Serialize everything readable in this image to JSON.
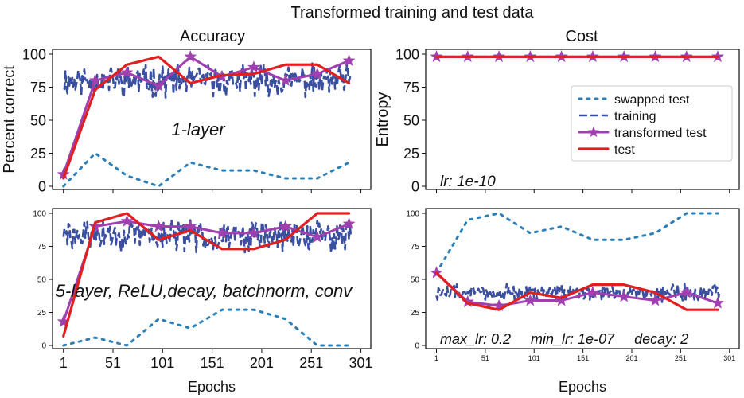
{
  "figure": {
    "title": "Transformed training and test data",
    "col_titles": [
      "Accuracy",
      "Cost"
    ]
  },
  "colors": {
    "swapped_test": "#2a7fb8",
    "training": "#3a4fa0",
    "transformed_test": "#a040b0",
    "test": "#e02020"
  },
  "legend": {
    "placement": "center-right of top-right panel",
    "entries": [
      "swapped test",
      "training",
      "transformed test",
      "test"
    ]
  },
  "chart_data": [
    {
      "id": "top_left",
      "type": "line",
      "title": "Accuracy",
      "ylabel": "Percent correct",
      "xlabel": "",
      "annotation": "1-layer",
      "xlim": [
        -10,
        311
      ],
      "ylim": [
        0,
        100
      ],
      "xticks": [
        1,
        51,
        101,
        151,
        201,
        251,
        301
      ],
      "show_xtick_labels": false,
      "yticks": [
        0,
        25,
        50,
        75,
        100
      ],
      "series": [
        {
          "key": "training",
          "x": [
            1,
            291
          ],
          "mean": 80,
          "amp": 9,
          "seed": 11
        },
        {
          "key": "transformed_test",
          "x": [
            1,
            33,
            65,
            97,
            129,
            161,
            193,
            225,
            257,
            289
          ],
          "y": [
            9,
            80,
            86,
            76,
            98,
            83,
            90,
            80,
            85,
            95
          ]
        },
        {
          "key": "test",
          "x": [
            1,
            33,
            65,
            97,
            129,
            161,
            193,
            225,
            257,
            289
          ],
          "y": [
            6,
            73,
            92,
            98,
            78,
            84,
            85,
            92,
            92,
            78
          ]
        },
        {
          "key": "swapped_test",
          "x": [
            1,
            33,
            65,
            97,
            129,
            161,
            193,
            225,
            257,
            289
          ],
          "y": [
            0,
            25,
            8,
            0,
            18,
            12,
            12,
            6,
            6,
            18
          ]
        }
      ]
    },
    {
      "id": "top_right",
      "type": "line",
      "title": "Cost",
      "ylabel": "Entropy",
      "xlabel": "",
      "annotation": "lr: 1e-10",
      "xlim": [
        -10,
        311
      ],
      "ylim": [
        0,
        100
      ],
      "xticks": [
        1,
        51,
        101,
        151,
        201,
        251,
        301
      ],
      "show_xtick_labels": false,
      "yticks": [
        0,
        25,
        50,
        75,
        100
      ],
      "series": [
        {
          "key": "swapped_test",
          "x": [
            1,
            33,
            65,
            97,
            129,
            161,
            193,
            225,
            257,
            289
          ],
          "y": [
            98,
            98,
            98,
            98,
            98,
            98,
            98,
            98,
            98,
            98
          ]
        },
        {
          "key": "training",
          "x": [
            1,
            291
          ],
          "mean": 98,
          "amp": 0,
          "seed": 3
        },
        {
          "key": "transformed_test",
          "x": [
            1,
            33,
            65,
            97,
            129,
            161,
            193,
            225,
            257,
            289
          ],
          "y": [
            98,
            98,
            98,
            98,
            98,
            98,
            98,
            98,
            98,
            98
          ]
        },
        {
          "key": "test",
          "x": [
            1,
            33,
            65,
            97,
            129,
            161,
            193,
            225,
            257,
            289
          ],
          "y": [
            98,
            98,
            98,
            98,
            98,
            98,
            98,
            98,
            98,
            98
          ]
        }
      ]
    },
    {
      "id": "bottom_left",
      "type": "line",
      "title": "",
      "ylabel": "",
      "xlabel": "Epochs",
      "annotation": "5-layer, ReLU,decay, batchnorm, conv",
      "xlim": [
        -10,
        311
      ],
      "ylim": [
        0,
        100
      ],
      "xticks": [
        1,
        51,
        101,
        151,
        201,
        251,
        301
      ],
      "show_xtick_labels": true,
      "yticks": [
        0,
        25,
        50,
        75,
        100
      ],
      "series": [
        {
          "key": "training",
          "x": [
            1,
            291
          ],
          "mean": 83,
          "amp": 9,
          "seed": 29
        },
        {
          "key": "transformed_test",
          "x": [
            1,
            33,
            65,
            97,
            129,
            161,
            193,
            225,
            257,
            289
          ],
          "y": [
            18,
            90,
            94,
            90,
            90,
            85,
            85,
            90,
            82,
            92
          ]
        },
        {
          "key": "test",
          "x": [
            1,
            33,
            65,
            97,
            129,
            161,
            193,
            225,
            257,
            289
          ],
          "y": [
            7,
            93,
            100,
            80,
            87,
            73,
            73,
            80,
            100,
            100
          ]
        },
        {
          "key": "swapped_test",
          "x": [
            1,
            33,
            65,
            97,
            129,
            161,
            193,
            225,
            257,
            289
          ],
          "y": [
            0,
            6,
            0,
            20,
            13,
            27,
            27,
            20,
            0,
            0
          ]
        }
      ]
    },
    {
      "id": "bottom_right",
      "type": "line",
      "title": "",
      "ylabel": "",
      "xlabel": "Epochs",
      "annotation": "max_lr: 0.2     min_lr: 1e-07     decay: 2",
      "xlim": [
        -10,
        311
      ],
      "ylim": [
        0,
        100
      ],
      "xticks": [
        1,
        51,
        101,
        151,
        201,
        251,
        301
      ],
      "show_xtick_labels": true,
      "yticks": [
        0,
        25,
        50,
        75,
        100
      ],
      "series": [
        {
          "key": "training",
          "x": [
            1,
            291
          ],
          "mean": 40,
          "amp": 5,
          "seed": 47
        },
        {
          "key": "swapped_test",
          "x": [
            1,
            33,
            65,
            97,
            129,
            161,
            193,
            225,
            257,
            289
          ],
          "y": [
            55,
            95,
            100,
            85,
            90,
            80,
            80,
            85,
            100,
            100
          ]
        },
        {
          "key": "transformed_test",
          "x": [
            1,
            33,
            65,
            97,
            129,
            161,
            193,
            225,
            257,
            289
          ],
          "y": [
            55,
            33,
            30,
            34,
            34,
            40,
            37,
            34,
            40,
            32
          ]
        },
        {
          "key": "test",
          "x": [
            1,
            33,
            65,
            97,
            129,
            161,
            193,
            225,
            257,
            289
          ],
          "y": [
            55,
            32,
            27,
            40,
            36,
            46,
            46,
            40,
            27,
            27
          ]
        }
      ]
    }
  ]
}
